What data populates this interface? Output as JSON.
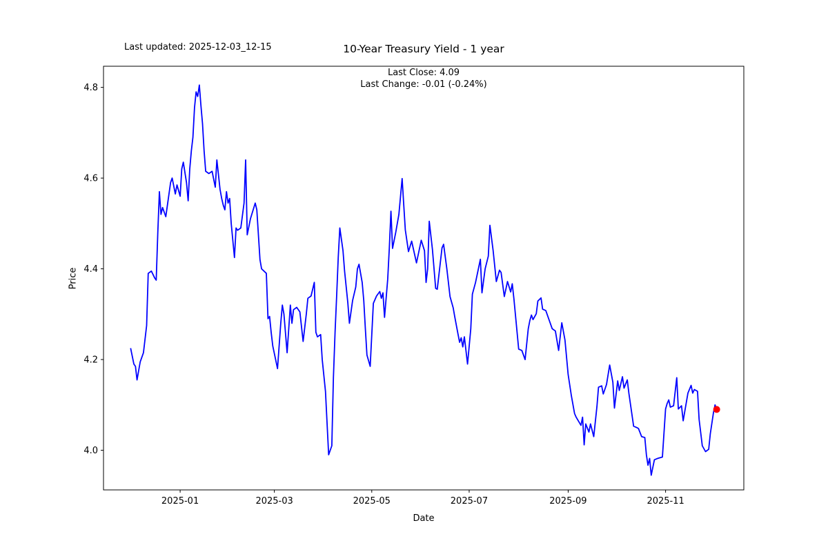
{
  "header": {
    "last_updated": "Last updated: 2025-12-03_12-15",
    "title": "10-Year Treasury Yield - 1 year",
    "last_close": "Last Close: 4.09",
    "last_change": "Last Change: -0.01 (-0.24%)"
  },
  "axes": {
    "x": {
      "label": "Date",
      "tick_labels": [
        "2025-01",
        "2025-03",
        "2025-05",
        "2025-07",
        "2025-09",
        "2025-11"
      ]
    },
    "y": {
      "label": "Price",
      "tick_values": [
        4.0,
        4.2,
        4.4,
        4.6,
        4.8
      ],
      "tick_labels": [
        "4.0",
        "4.2",
        "4.4",
        "4.6",
        "4.8"
      ]
    }
  },
  "chart_data": {
    "type": "line",
    "title": "10-Year Treasury Yield - 1 year",
    "xlabel": "Date",
    "ylabel": "Price",
    "grid": false,
    "legend": "none",
    "line_color": "#0000ff",
    "line_width": 1.8,
    "marker_color": "#ff0000",
    "marker_radius": 5,
    "xlim": [
      "2024-11-14",
      "2025-12-20"
    ],
    "ylim": [
      3.9126,
      4.8466
    ],
    "x_ticks": [
      "2025-01-01",
      "2025-03-01",
      "2025-05-01",
      "2025-07-01",
      "2025-09-01",
      "2025-11-01"
    ],
    "x_tick_labels": [
      "2025-01",
      "2025-03",
      "2025-05",
      "2025-07",
      "2025-09",
      "2025-11"
    ],
    "y_ticks": [
      4.0,
      4.2,
      4.4,
      4.6,
      4.8
    ],
    "last_close": 4.09,
    "last_change": -0.01,
    "last_change_pct": -0.24,
    "last_point": [
      "2025-12-03",
      4.09
    ],
    "series": [
      {
        "name": "10-Year Treasury Yield",
        "points": [
          [
            "2024-12-01",
            4.225
          ],
          [
            "2024-12-03",
            4.19
          ],
          [
            "2024-12-04",
            4.185
          ],
          [
            "2024-12-05",
            4.155
          ],
          [
            "2024-12-07",
            4.195
          ],
          [
            "2024-12-09",
            4.215
          ],
          [
            "2024-12-11",
            4.275
          ],
          [
            "2024-12-12",
            4.39
          ],
          [
            "2024-12-14",
            4.395
          ],
          [
            "2024-12-16",
            4.38
          ],
          [
            "2024-12-17",
            4.375
          ],
          [
            "2024-12-18",
            4.48
          ],
          [
            "2024-12-19",
            4.57
          ],
          [
            "2024-12-20",
            4.52
          ],
          [
            "2024-12-21",
            4.535
          ],
          [
            "2024-12-23",
            4.515
          ],
          [
            "2024-12-26",
            4.59
          ],
          [
            "2024-12-27",
            4.6
          ],
          [
            "2024-12-29",
            4.565
          ],
          [
            "2024-12-30",
            4.585
          ],
          [
            "2025-01-01",
            4.56
          ],
          [
            "2025-01-02",
            4.62
          ],
          [
            "2025-01-03",
            4.635
          ],
          [
            "2025-01-05",
            4.59
          ],
          [
            "2025-01-06",
            4.55
          ],
          [
            "2025-01-07",
            4.62
          ],
          [
            "2025-01-08",
            4.66
          ],
          [
            "2025-01-09",
            4.69
          ],
          [
            "2025-01-10",
            4.755
          ],
          [
            "2025-01-11",
            4.79
          ],
          [
            "2025-01-12",
            4.78
          ],
          [
            "2025-01-13",
            4.805
          ],
          [
            "2025-01-14",
            4.76
          ],
          [
            "2025-01-15",
            4.72
          ],
          [
            "2025-01-16",
            4.66
          ],
          [
            "2025-01-17",
            4.615
          ],
          [
            "2025-01-19",
            4.61
          ],
          [
            "2025-01-21",
            4.615
          ],
          [
            "2025-01-23",
            4.58
          ],
          [
            "2025-01-24",
            4.64
          ],
          [
            "2025-01-26",
            4.575
          ],
          [
            "2025-01-27",
            4.555
          ],
          [
            "2025-01-28",
            4.54
          ],
          [
            "2025-01-29",
            4.53
          ],
          [
            "2025-01-30",
            4.57
          ],
          [
            "2025-01-31",
            4.545
          ],
          [
            "2025-02-01",
            4.555
          ],
          [
            "2025-02-02",
            4.5
          ],
          [
            "2025-02-04",
            4.425
          ],
          [
            "2025-02-05",
            4.49
          ],
          [
            "2025-02-06",
            4.485
          ],
          [
            "2025-02-08",
            4.49
          ],
          [
            "2025-02-10",
            4.545
          ],
          [
            "2025-02-11",
            4.64
          ],
          [
            "2025-02-12",
            4.475
          ],
          [
            "2025-02-14",
            4.51
          ],
          [
            "2025-02-17",
            4.545
          ],
          [
            "2025-02-18",
            4.53
          ],
          [
            "2025-02-20",
            4.42
          ],
          [
            "2025-02-21",
            4.4
          ],
          [
            "2025-02-24",
            4.39
          ],
          [
            "2025-02-25",
            4.29
          ],
          [
            "2025-02-26",
            4.295
          ],
          [
            "2025-02-27",
            4.26
          ],
          [
            "2025-02-28",
            4.23
          ],
          [
            "2025-03-03",
            4.18
          ],
          [
            "2025-03-05",
            4.28
          ],
          [
            "2025-03-06",
            4.32
          ],
          [
            "2025-03-07",
            4.3
          ],
          [
            "2025-03-09",
            4.215
          ],
          [
            "2025-03-11",
            4.32
          ],
          [
            "2025-03-12",
            4.28
          ],
          [
            "2025-03-13",
            4.31
          ],
          [
            "2025-03-15",
            4.315
          ],
          [
            "2025-03-17",
            4.305
          ],
          [
            "2025-03-19",
            4.24
          ],
          [
            "2025-03-21",
            4.3
          ],
          [
            "2025-03-22",
            4.335
          ],
          [
            "2025-03-24",
            4.34
          ],
          [
            "2025-03-26",
            4.37
          ],
          [
            "2025-03-27",
            4.26
          ],
          [
            "2025-03-28",
            4.25
          ],
          [
            "2025-03-30",
            4.255
          ],
          [
            "2025-03-31",
            4.2
          ],
          [
            "2025-04-02",
            4.13
          ],
          [
            "2025-04-04",
            3.99
          ],
          [
            "2025-04-06",
            4.01
          ],
          [
            "2025-04-07",
            4.16
          ],
          [
            "2025-04-08",
            4.26
          ],
          [
            "2025-04-09",
            4.34
          ],
          [
            "2025-04-10",
            4.425
          ],
          [
            "2025-04-11",
            4.49
          ],
          [
            "2025-04-13",
            4.44
          ],
          [
            "2025-04-14",
            4.395
          ],
          [
            "2025-04-16",
            4.325
          ],
          [
            "2025-04-17",
            4.28
          ],
          [
            "2025-04-19",
            4.33
          ],
          [
            "2025-04-21",
            4.36
          ],
          [
            "2025-04-22",
            4.4
          ],
          [
            "2025-04-23",
            4.41
          ],
          [
            "2025-04-25",
            4.37
          ],
          [
            "2025-04-26",
            4.33
          ],
          [
            "2025-04-27",
            4.268
          ],
          [
            "2025-04-28",
            4.21
          ],
          [
            "2025-04-30",
            4.185
          ],
          [
            "2025-05-02",
            4.324
          ],
          [
            "2025-05-04",
            4.34
          ],
          [
            "2025-05-06",
            4.35
          ],
          [
            "2025-05-07",
            4.335
          ],
          [
            "2025-05-08",
            4.347
          ],
          [
            "2025-05-09",
            4.293
          ],
          [
            "2025-05-11",
            4.377
          ],
          [
            "2025-05-12",
            4.445
          ],
          [
            "2025-05-13",
            4.527
          ],
          [
            "2025-05-14",
            4.445
          ],
          [
            "2025-05-16",
            4.48
          ],
          [
            "2025-05-18",
            4.52
          ],
          [
            "2025-05-20",
            4.599
          ],
          [
            "2025-05-21",
            4.542
          ],
          [
            "2025-05-22",
            4.486
          ],
          [
            "2025-05-24",
            4.438
          ],
          [
            "2025-05-26",
            4.461
          ],
          [
            "2025-05-29",
            4.413
          ],
          [
            "2025-06-01",
            4.463
          ],
          [
            "2025-06-03",
            4.44
          ],
          [
            "2025-06-04",
            4.37
          ],
          [
            "2025-06-05",
            4.4
          ],
          [
            "2025-06-06",
            4.505
          ],
          [
            "2025-06-08",
            4.443
          ],
          [
            "2025-06-10",
            4.357
          ],
          [
            "2025-06-11",
            4.355
          ],
          [
            "2025-06-14",
            4.446
          ],
          [
            "2025-06-15",
            4.454
          ],
          [
            "2025-06-17",
            4.4
          ],
          [
            "2025-06-19",
            4.339
          ],
          [
            "2025-06-21",
            4.314
          ],
          [
            "2025-06-22",
            4.294
          ],
          [
            "2025-06-24",
            4.256
          ],
          [
            "2025-06-25",
            4.238
          ],
          [
            "2025-06-26",
            4.248
          ],
          [
            "2025-06-27",
            4.228
          ],
          [
            "2025-06-28",
            4.25
          ],
          [
            "2025-06-30",
            4.19
          ],
          [
            "2025-07-02",
            4.268
          ],
          [
            "2025-07-03",
            4.344
          ],
          [
            "2025-07-05",
            4.37
          ],
          [
            "2025-07-08",
            4.421
          ],
          [
            "2025-07-09",
            4.347
          ],
          [
            "2025-07-11",
            4.4
          ],
          [
            "2025-07-13",
            4.428
          ],
          [
            "2025-07-14",
            4.496
          ],
          [
            "2025-07-16",
            4.44
          ],
          [
            "2025-07-18",
            4.372
          ],
          [
            "2025-07-20",
            4.397
          ],
          [
            "2025-07-21",
            4.392
          ],
          [
            "2025-07-23",
            4.339
          ],
          [
            "2025-07-25",
            4.372
          ],
          [
            "2025-07-27",
            4.349
          ],
          [
            "2025-07-28",
            4.367
          ],
          [
            "2025-07-29",
            4.334
          ],
          [
            "2025-08-01",
            4.223
          ],
          [
            "2025-08-03",
            4.22
          ],
          [
            "2025-08-05",
            4.2
          ],
          [
            "2025-08-07",
            4.268
          ],
          [
            "2025-08-08",
            4.286
          ],
          [
            "2025-08-09",
            4.298
          ],
          [
            "2025-08-10",
            4.288
          ],
          [
            "2025-08-12",
            4.301
          ],
          [
            "2025-08-13",
            4.329
          ],
          [
            "2025-08-15",
            4.336
          ],
          [
            "2025-08-16",
            4.311
          ],
          [
            "2025-08-18",
            4.308
          ],
          [
            "2025-08-22",
            4.268
          ],
          [
            "2025-08-24",
            4.263
          ],
          [
            "2025-08-26",
            4.22
          ],
          [
            "2025-08-28",
            4.281
          ],
          [
            "2025-08-30",
            4.243
          ],
          [
            "2025-09-01",
            4.167
          ],
          [
            "2025-09-03",
            4.12
          ],
          [
            "2025-09-05",
            4.081
          ],
          [
            "2025-09-06",
            4.073
          ],
          [
            "2025-09-09",
            4.055
          ],
          [
            "2025-09-10",
            4.073
          ],
          [
            "2025-09-11",
            4.012
          ],
          [
            "2025-09-12",
            4.058
          ],
          [
            "2025-09-14",
            4.04
          ],
          [
            "2025-09-15",
            4.058
          ],
          [
            "2025-09-17",
            4.03
          ],
          [
            "2025-09-19",
            4.096
          ],
          [
            "2025-09-20",
            4.139
          ],
          [
            "2025-09-22",
            4.142
          ],
          [
            "2025-09-23",
            4.124
          ],
          [
            "2025-09-25",
            4.145
          ],
          [
            "2025-09-27",
            4.188
          ],
          [
            "2025-09-29",
            4.15
          ],
          [
            "2025-09-30",
            4.093
          ],
          [
            "2025-10-02",
            4.153
          ],
          [
            "2025-10-03",
            4.132
          ],
          [
            "2025-10-05",
            4.162
          ],
          [
            "2025-10-06",
            4.137
          ],
          [
            "2025-10-08",
            4.155
          ],
          [
            "2025-10-09",
            4.126
          ],
          [
            "2025-10-12",
            4.053
          ],
          [
            "2025-10-14",
            4.05
          ],
          [
            "2025-10-15",
            4.048
          ],
          [
            "2025-10-17",
            4.03
          ],
          [
            "2025-10-19",
            4.028
          ],
          [
            "2025-10-20",
            3.99
          ],
          [
            "2025-10-21",
            3.967
          ],
          [
            "2025-10-22",
            3.982
          ],
          [
            "2025-10-23",
            3.945
          ],
          [
            "2025-10-25",
            3.979
          ],
          [
            "2025-10-27",
            3.982
          ],
          [
            "2025-10-30",
            3.985
          ],
          [
            "2025-11-01",
            4.091
          ],
          [
            "2025-11-02",
            4.103
          ],
          [
            "2025-11-03",
            4.111
          ],
          [
            "2025-11-04",
            4.095
          ],
          [
            "2025-11-06",
            4.098
          ],
          [
            "2025-11-08",
            4.16
          ],
          [
            "2025-11-09",
            4.091
          ],
          [
            "2025-11-11",
            4.098
          ],
          [
            "2025-11-12",
            4.065
          ],
          [
            "2025-11-15",
            4.126
          ],
          [
            "2025-11-17",
            4.143
          ],
          [
            "2025-11-18",
            4.126
          ],
          [
            "2025-11-19",
            4.134
          ],
          [
            "2025-11-21",
            4.13
          ],
          [
            "2025-11-22",
            4.068
          ],
          [
            "2025-11-24",
            4.01
          ],
          [
            "2025-11-26",
            3.997
          ],
          [
            "2025-11-28",
            4.002
          ],
          [
            "2025-11-29",
            4.036
          ],
          [
            "2025-12-01",
            4.083
          ],
          [
            "2025-12-02",
            4.1
          ],
          [
            "2025-12-03",
            4.09
          ]
        ]
      }
    ]
  }
}
